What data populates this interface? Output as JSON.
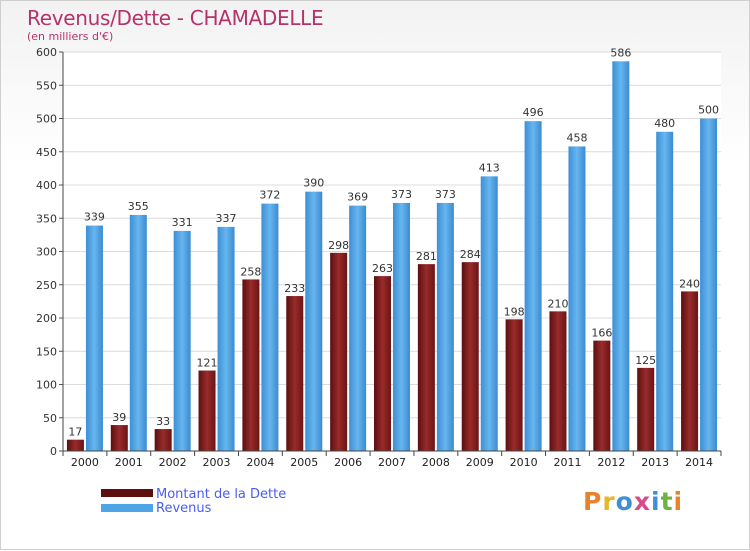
{
  "title": "Revenus/Dette - CHAMADELLE",
  "subtitle": "(en milliers d'€)",
  "colors": {
    "dette": "#7a1b1b",
    "revenus": "#4ea4e4",
    "title": "#b5336b",
    "legend_text": "#4a5df0"
  },
  "legend": {
    "dette_label": "Montant de la Dette",
    "revenus_label": "Revenus"
  },
  "logo": {
    "text": "Proxiti",
    "letter_colors": [
      "#e8822a",
      "#e8b62a",
      "#3f8fd8",
      "#d94a8a",
      "#3f8fd8",
      "#6cb33f",
      "#e8822a"
    ]
  },
  "chart_data": {
    "type": "bar",
    "categories": [
      "2000",
      "2001",
      "2002",
      "2003",
      "2004",
      "2005",
      "2006",
      "2007",
      "2008",
      "2009",
      "2010",
      "2011",
      "2012",
      "2013",
      "2014"
    ],
    "series": [
      {
        "name": "Montant de la Dette",
        "values": [
          17,
          39,
          33,
          121,
          258,
          233,
          298,
          263,
          281,
          284,
          198,
          210,
          166,
          125,
          240
        ]
      },
      {
        "name": "Revenus",
        "values": [
          339,
          355,
          331,
          337,
          372,
          390,
          369,
          373,
          373,
          413,
          496,
          458,
          586,
          480,
          500
        ]
      }
    ],
    "ylim": [
      0,
      600
    ],
    "yticks": [
      0,
      50,
      100,
      150,
      200,
      250,
      300,
      350,
      400,
      450,
      500,
      550,
      600
    ],
    "grid": true,
    "legend_position": "bottom-left"
  }
}
